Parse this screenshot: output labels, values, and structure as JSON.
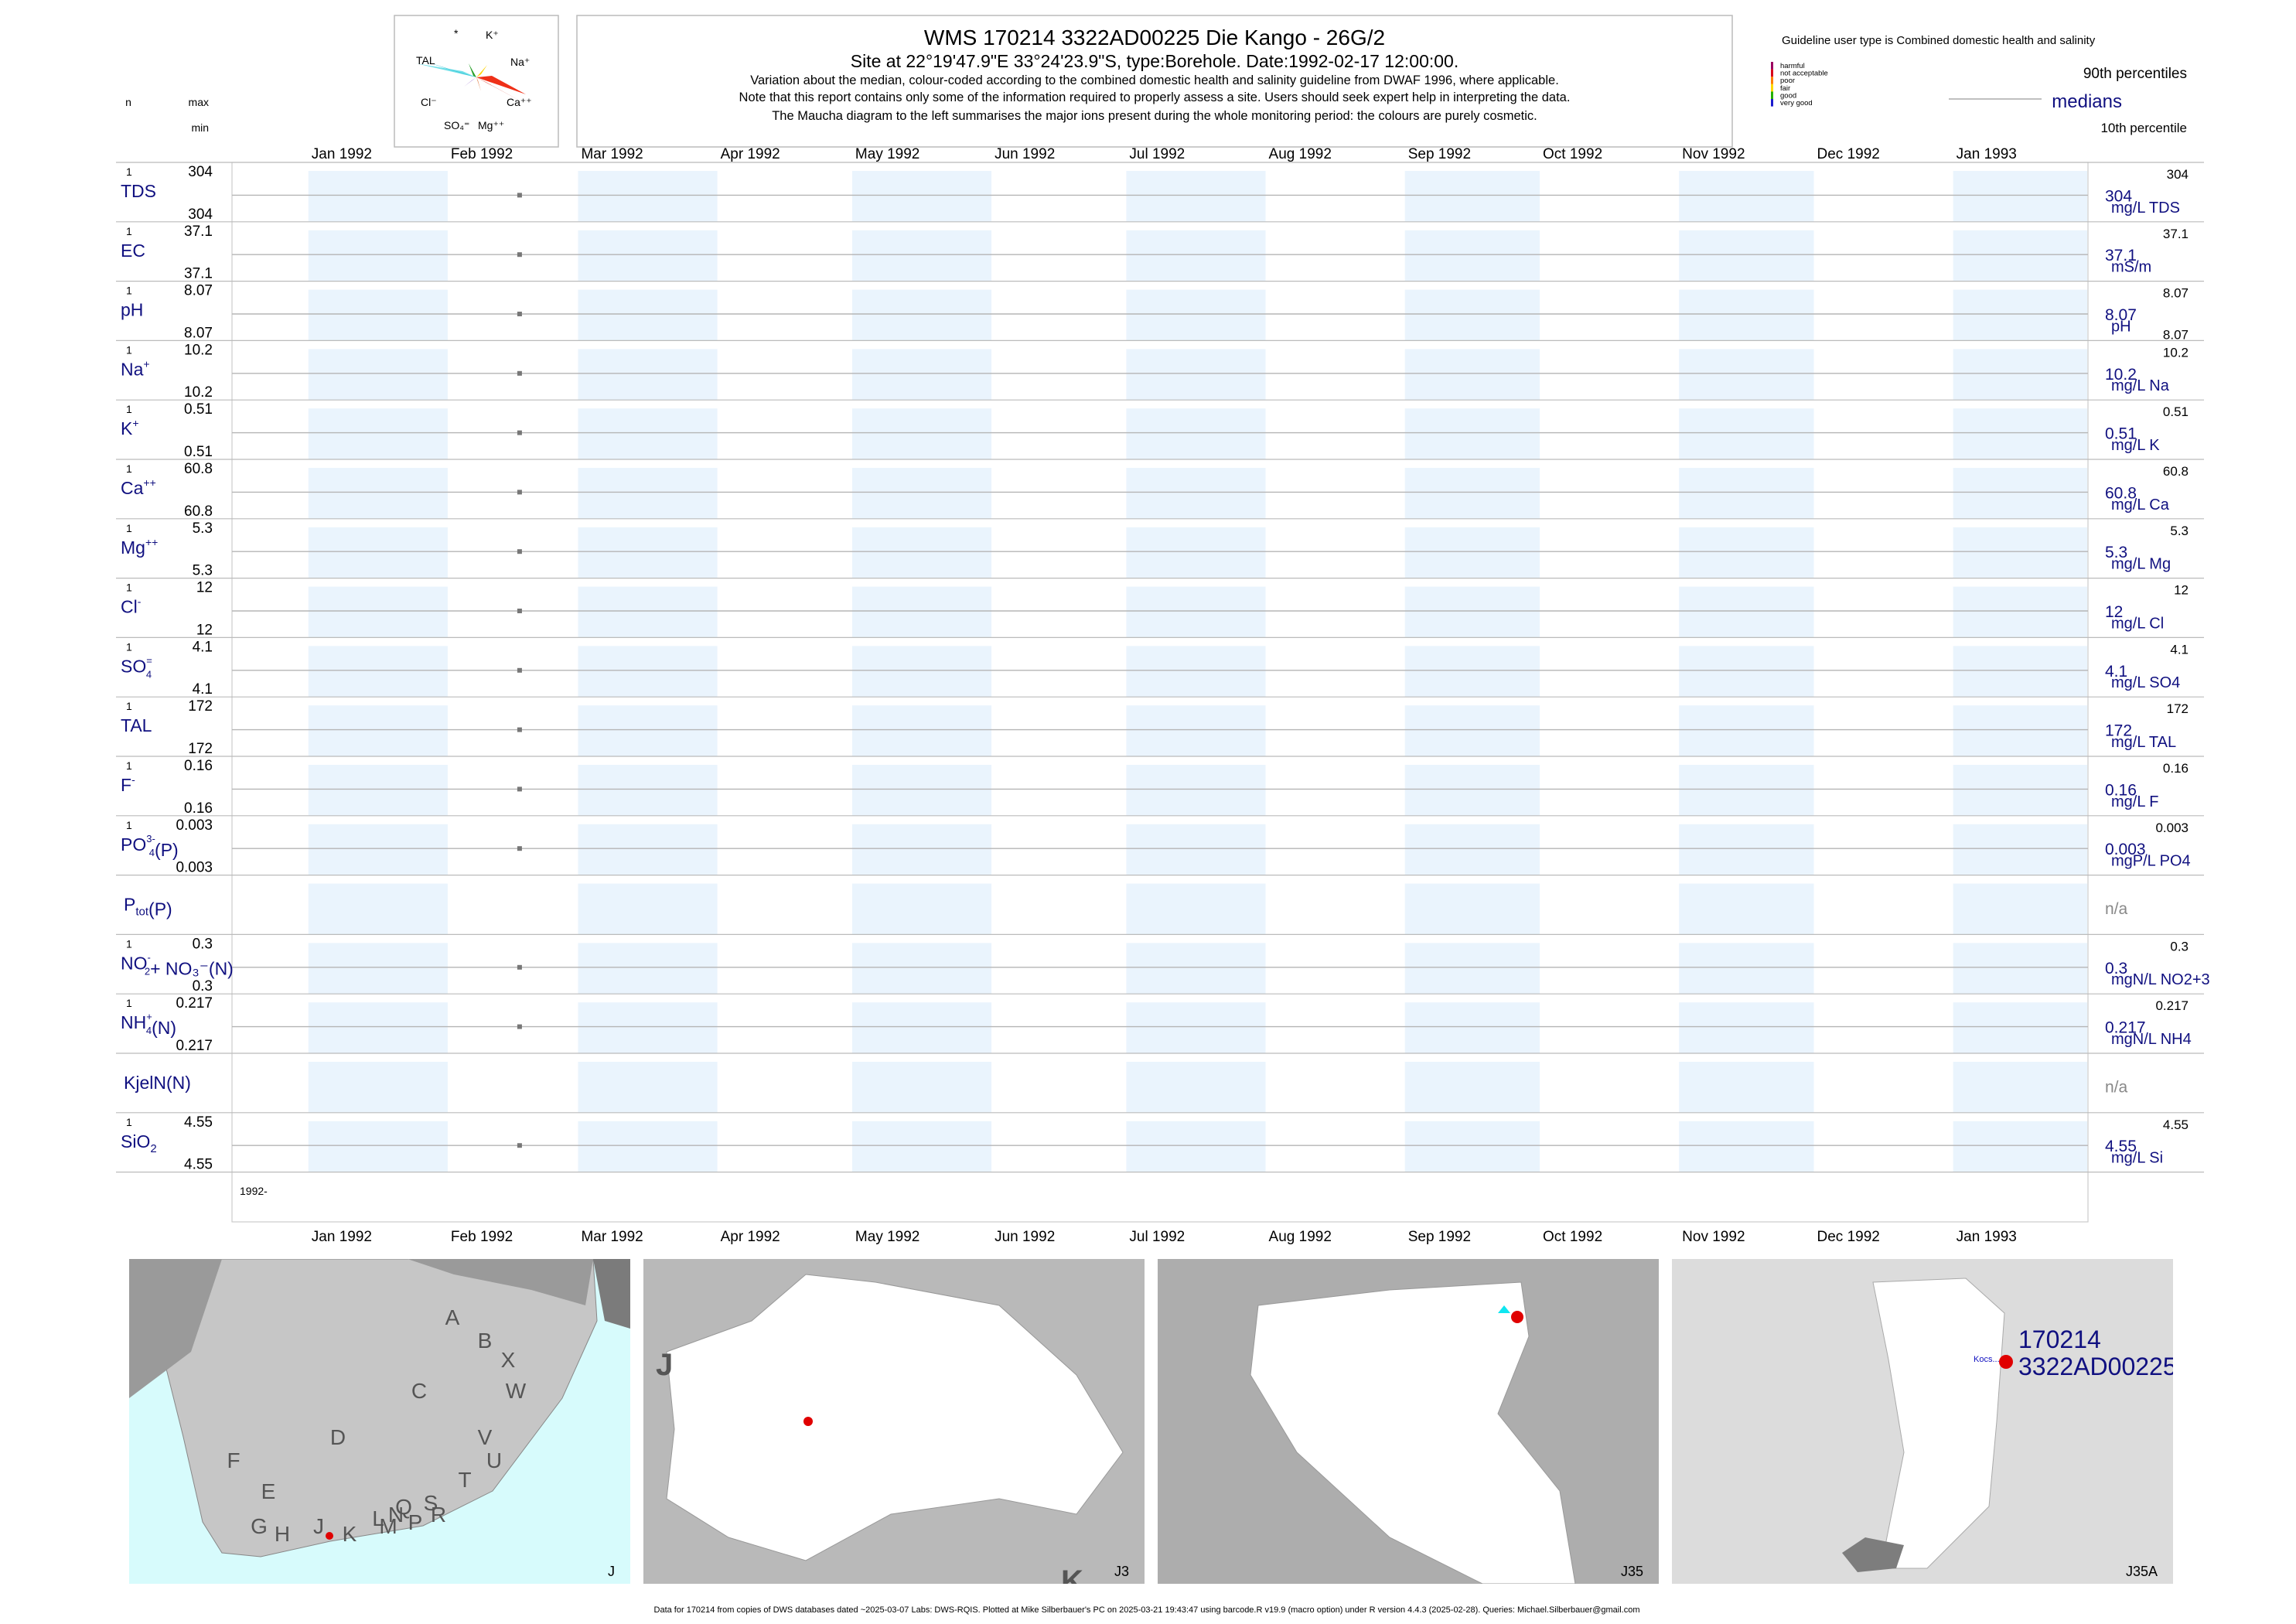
{
  "header": {
    "title": "WMS 170214 3322AD00225 Die Kango - 26G/2",
    "subtitle": "Site at 22°19'47.9\"E 33°24'23.9\"S, type:Borehole. Date:1992-02-17 12:00:00.",
    "note1": "Variation about the median,  colour-coded according to the combined domestic health and salinity guideline from DWAF 1996, where applicable.",
    "note2": "Note that this report contains only some of the information required to properly assess a site. Users should seek expert help in interpreting the data.",
    "note3": "The Maucha diagram to the left summarises the major ions present during the whole monitoring period: the colours are purely cosmetic."
  },
  "maucha": {
    "labels": [
      "*",
      "K⁺",
      "TAL",
      "Na⁺",
      "Cl⁻",
      "Ca⁺⁺",
      "SO₄⁼",
      "Mg⁺⁺"
    ]
  },
  "legend": {
    "guideline": "Guideline user type is Combined domestic health and salinity",
    "classes": [
      {
        "name": "harmful",
        "color": "#9b0060"
      },
      {
        "name": "not acceptable",
        "color": "#d8001a"
      },
      {
        "name": "poor",
        "color": "#ff7d00"
      },
      {
        "name": "fair",
        "color": "#ffd800"
      },
      {
        "name": "good",
        "color": "#25b000"
      },
      {
        "name": "very good",
        "color": "#1a1acd"
      }
    ],
    "p90": "90th percentiles",
    "medians": "medians",
    "p10": "10th percentile"
  },
  "left_header": {
    "n": "n",
    "max": "max",
    "min": "min"
  },
  "chart_data": {
    "type": "scatter",
    "x_axis": {
      "range": [
        "1991-12-15",
        "1993-01-31"
      ],
      "ticks": [
        "Jan 1992",
        "Feb 1992",
        "Mar 1992",
        "Apr 1992",
        "May 1992",
        "Jun 1992",
        "Jul 1992",
        "Aug 1992",
        "Sep 1992",
        "Oct 1992",
        "Nov 1992",
        "Dec 1992",
        "Jan 1993"
      ],
      "year_label": "1992-"
    },
    "sample_date": "1992-02-17",
    "series": [
      {
        "name": "TDS",
        "n": "1",
        "max": "304",
        "min": "304",
        "median": "304",
        "p90": "304",
        "p10": "",
        "unit": "mg/L TDS",
        "has_data": true
      },
      {
        "name": "EC",
        "n": "1",
        "max": "37.1",
        "min": "37.1",
        "median": "37.1",
        "p90": "37.1",
        "p10": "",
        "unit": "mS/m",
        "has_data": true
      },
      {
        "name": "pH",
        "n": "1",
        "max": "8.07",
        "min": "8.07",
        "median": "8.07",
        "p90": "8.07",
        "p10": "8.07",
        "unit": "pH",
        "has_data": true
      },
      {
        "name": "Na",
        "sup": "+",
        "n": "1",
        "max": "10.2",
        "min": "10.2",
        "median": "10.2",
        "p90": "10.2",
        "p10": "",
        "unit": "mg/L Na",
        "has_data": true
      },
      {
        "name": "K",
        "sup": "+",
        "n": "1",
        "max": "0.51",
        "min": "0.51",
        "median": "0.51",
        "p90": "0.51",
        "p10": "",
        "unit": "mg/L K",
        "has_data": true
      },
      {
        "name": "Ca",
        "sup": "++",
        "n": "1",
        "max": "60.8",
        "min": "60.8",
        "median": "60.8",
        "p90": "60.8",
        "p10": "",
        "unit": "mg/L Ca",
        "has_data": true
      },
      {
        "name": "Mg",
        "sup": "++",
        "n": "1",
        "max": "5.3",
        "min": "5.3",
        "median": "5.3",
        "p90": "5.3",
        "p10": "",
        "unit": "mg/L Mg",
        "has_data": true
      },
      {
        "name": "Cl",
        "sup": "-",
        "n": "1",
        "max": "12",
        "min": "12",
        "median": "12",
        "p90": "12",
        "p10": "",
        "unit": "mg/L Cl",
        "has_data": true
      },
      {
        "name": "SO",
        "sub": "4",
        "sup": "=",
        "n": "1",
        "max": "4.1",
        "min": "4.1",
        "median": "4.1",
        "p90": "4.1",
        "p10": "",
        "unit": "mg/L SO4",
        "has_data": true
      },
      {
        "name": "TAL",
        "n": "1",
        "max": "172",
        "min": "172",
        "median": "172",
        "p90": "172",
        "p10": "",
        "unit": "mg/L TAL",
        "has_data": true
      },
      {
        "name": "F",
        "sup": "-",
        "n": "1",
        "max": "0.16",
        "min": "0.16",
        "median": "0.16",
        "p90": "0.16",
        "p10": "",
        "unit": "mg/L F",
        "has_data": true
      },
      {
        "name": "PO",
        "sub": "4",
        "sup": "3-",
        "suffix": "(P)",
        "n": "1",
        "max": "0.003",
        "min": "0.003",
        "median": "0.003",
        "p90": "0.003",
        "p10": "",
        "unit": "mgP/L PO4",
        "has_data": true
      },
      {
        "name": "P",
        "sub": "tot",
        "suffix": "(P)",
        "n": "",
        "max": "",
        "min": "",
        "median": "n/a",
        "p90": "",
        "p10": "",
        "unit": "",
        "has_data": false
      },
      {
        "name": "NO",
        "sub": "2",
        "sup": "-",
        "suffix": "+ NO₃⁻(N)",
        "n": "1",
        "max": "0.3",
        "min": "0.3",
        "median": "0.3",
        "p90": "0.3",
        "p10": "",
        "unit": "mgN/L NO2+3",
        "has_data": true
      },
      {
        "name": "NH",
        "sub": "4",
        "sup": "+",
        "suffix": "(N)",
        "n": "1",
        "max": "0.217",
        "min": "0.217",
        "median": "0.217",
        "p90": "0.217",
        "p10": "",
        "unit": "mgN/L NH4",
        "has_data": true
      },
      {
        "name": "KjelN(N)",
        "n": "",
        "max": "",
        "min": "",
        "median": "n/a",
        "p90": "",
        "p10": "",
        "unit": "",
        "has_data": false
      },
      {
        "name": "SiO",
        "sub": "2",
        "n": "1",
        "max": "4.55",
        "min": "4.55",
        "median": "4.55",
        "p90": "4.55",
        "p10": "",
        "unit": "mg/L Si",
        "has_data": true
      }
    ]
  },
  "maps": {
    "panels": [
      {
        "label": "J",
        "letters": [
          "A",
          "B",
          "X",
          "W",
          "C",
          "V",
          "U",
          "D",
          "T",
          "F",
          "E",
          "G",
          "H",
          "J",
          "K",
          "L",
          "N",
          "M",
          "P",
          "Q",
          "R",
          "S"
        ]
      },
      {
        "label": "J3",
        "letters": [
          "J",
          "K"
        ]
      },
      {
        "label": "J35",
        "letters": []
      },
      {
        "label": "J35A",
        "letters": []
      }
    ],
    "site_label_1": "170214",
    "site_label_2": "3322AD00225",
    "nearby_label": "Kocs..."
  },
  "footer": "Data for 170214 from copies of DWS databases dated ~2025-03-07 Labs: DWS-RQIS. Plotted at Mike Silberbauer's PC on 2025-03-21 19:43:47 using barcode.R v19.9 (macro option) under R version 4.4.3 (2025-02-28). Queries: Michael.Silberbauer@gmail.com"
}
